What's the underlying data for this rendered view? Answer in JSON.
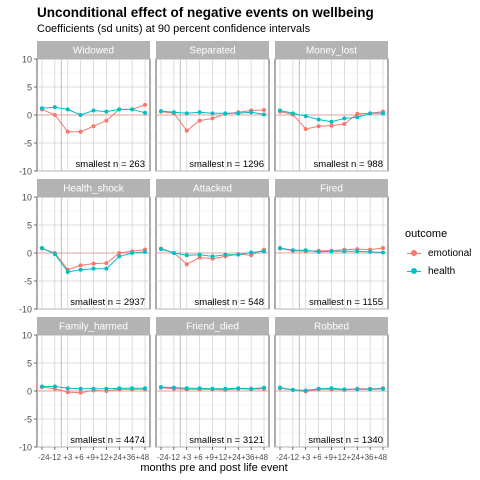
{
  "chart_data": {
    "type": "line",
    "title": "Unconditional effect of negative events on wellbeing",
    "subtitle": "Coefficients (sd units) at 90 percent confidence intervals",
    "xlabel": "months pre and post life event",
    "x_tick_labels": [
      "-24",
      "-12",
      "+3",
      "+6",
      "+9",
      "+12",
      "+24",
      "+36",
      "+48"
    ],
    "x_tick_text": "-24-12 +3 +6 +9+12+24+36+48",
    "ylim": [
      -10,
      10
    ],
    "y_ticks": [
      -10,
      -5,
      0,
      5,
      10
    ],
    "grid": true,
    "legend": {
      "title": "outcome",
      "placement": "right",
      "entries": [
        {
          "name": "emotional",
          "color": "#F8766D"
        },
        {
          "name": "health",
          "color": "#00BFC4"
        }
      ]
    },
    "panels": [
      {
        "name": "Widowed",
        "note": "smallest n = 263",
        "series": [
          {
            "name": "emotional",
            "values": [
              1.0,
              0.0,
              -3.0,
              -3.0,
              -2.0,
              -1.0,
              1.0,
              1.0,
              1.8
            ]
          },
          {
            "name": "health",
            "values": [
              1.2,
              1.4,
              1.0,
              0.0,
              0.8,
              0.6,
              1.0,
              1.0,
              0.4
            ]
          }
        ]
      },
      {
        "name": "Separated",
        "note": "smallest n = 1296",
        "series": [
          {
            "name": "emotional",
            "values": [
              0.6,
              0.3,
              -2.8,
              -1.0,
              -0.6,
              0.2,
              0.5,
              0.8,
              0.9
            ]
          },
          {
            "name": "health",
            "values": [
              0.7,
              0.5,
              0.3,
              0.5,
              0.3,
              0.3,
              0.3,
              0.5,
              0.1
            ]
          }
        ]
      },
      {
        "name": "Money_lost",
        "note": "smallest n = 988",
        "series": [
          {
            "name": "emotional",
            "values": [
              0.6,
              0.1,
              -2.5,
              -2.0,
              -1.9,
              -1.6,
              0.2,
              0.3,
              0.6
            ]
          },
          {
            "name": "health",
            "values": [
              0.8,
              0.3,
              -0.2,
              -0.8,
              -1.2,
              -0.6,
              -0.4,
              0.3,
              0.3
            ]
          }
        ]
      },
      {
        "name": "Health_shock",
        "note": "smallest n = 2937",
        "series": [
          {
            "name": "emotional",
            "values": [
              0.8,
              0.0,
              -3.0,
              -2.2,
              -1.9,
              -1.8,
              0.0,
              0.3,
              0.6
            ]
          },
          {
            "name": "health",
            "values": [
              0.9,
              -0.2,
              -3.4,
              -3.0,
              -2.8,
              -2.8,
              -0.6,
              0.0,
              0.2
            ]
          }
        ]
      },
      {
        "name": "Attacked",
        "note": "smallest n = 548",
        "series": [
          {
            "name": "emotional",
            "values": [
              0.8,
              0.0,
              -2.0,
              -0.8,
              -1.0,
              -0.6,
              -0.2,
              -0.4,
              0.6
            ]
          },
          {
            "name": "health",
            "values": [
              0.7,
              0.0,
              -0.4,
              -0.3,
              -0.6,
              -0.3,
              -0.3,
              0.1,
              0.3
            ]
          }
        ]
      },
      {
        "name": "Fired",
        "note": "smallest n = 1155",
        "series": [
          {
            "name": "emotional",
            "values": [
              0.8,
              0.4,
              0.3,
              0.4,
              0.4,
              0.6,
              0.7,
              0.6,
              0.9
            ]
          },
          {
            "name": "health",
            "values": [
              0.9,
              0.5,
              0.5,
              0.2,
              0.3,
              0.3,
              0.3,
              0.2,
              0.1
            ]
          }
        ]
      },
      {
        "name": "Family_harmed",
        "note": "smallest n = 4474",
        "series": [
          {
            "name": "emotional",
            "values": [
              0.7,
              0.4,
              -0.2,
              -0.3,
              0.1,
              0.0,
              0.3,
              0.3,
              0.3
            ]
          },
          {
            "name": "health",
            "values": [
              0.8,
              0.8,
              0.5,
              0.4,
              0.4,
              0.4,
              0.5,
              0.5,
              0.5
            ]
          }
        ]
      },
      {
        "name": "Friend_died",
        "note": "smallest n = 3121",
        "series": [
          {
            "name": "emotional",
            "values": [
              0.6,
              0.4,
              0.3,
              0.3,
              0.3,
              0.2,
              0.4,
              0.3,
              0.4
            ]
          },
          {
            "name": "health",
            "values": [
              0.7,
              0.6,
              0.5,
              0.5,
              0.4,
              0.4,
              0.5,
              0.4,
              0.6
            ]
          }
        ]
      },
      {
        "name": "Robbed",
        "note": "smallest n = 1340",
        "series": [
          {
            "name": "emotional",
            "values": [
              0.5,
              0.2,
              -0.1,
              0.3,
              0.3,
              0.2,
              0.4,
              0.4,
              0.5
            ]
          },
          {
            "name": "health",
            "values": [
              0.6,
              0.2,
              0.1,
              0.4,
              0.5,
              0.3,
              0.3,
              0.3,
              0.4
            ]
          }
        ]
      }
    ]
  }
}
